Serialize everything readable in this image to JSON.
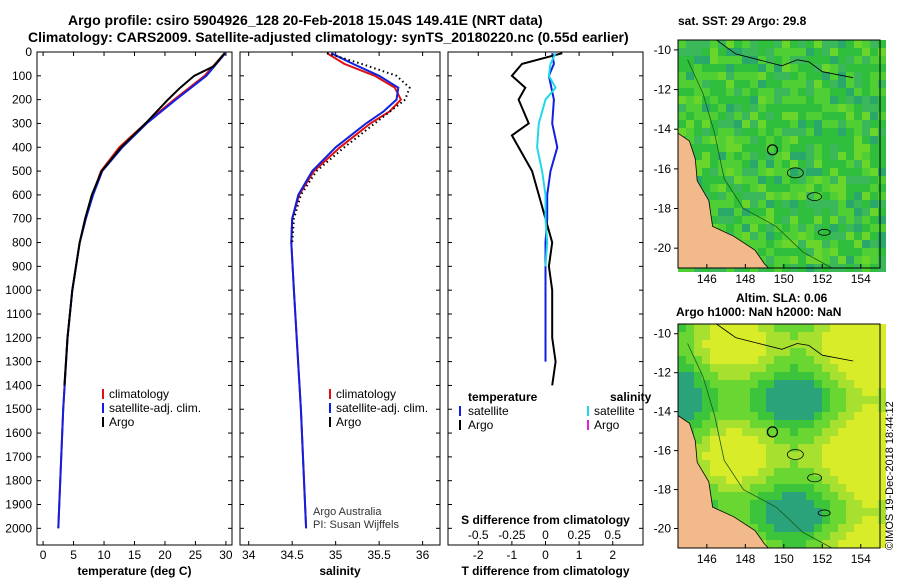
{
  "header": {
    "line1": "Argo profile: csiro 5904926_128 20-Feb-2018 15.04S 149.41E (NRT data)",
    "line2": "Climatology: CARS2009. Satellite-adjusted climatology: synTS_20180220.nc (0.55d earlier)"
  },
  "colors": {
    "clim": "#e01010",
    "sat": "#1020e0",
    "argo": "#000000",
    "sat_s": "#20d8e8",
    "argo_s": "#e020e0",
    "land": "#f2b98a"
  },
  "chart_data": [
    {
      "type": "line",
      "name": "temperature-profile",
      "xlabel": "temperature (deg C)",
      "ylabel": "pressure",
      "xlim": [
        -1,
        31
      ],
      "ylim": [
        0,
        2070
      ],
      "xticks": [
        0,
        5,
        10,
        15,
        20,
        25,
        30
      ],
      "yticks": [
        0,
        100,
        200,
        300,
        400,
        500,
        600,
        700,
        800,
        900,
        1000,
        1100,
        1200,
        1300,
        1400,
        1500,
        1600,
        1700,
        1800,
        1900,
        2000
      ],
      "legend": [
        {
          "label": "climatology",
          "color": "clim"
        },
        {
          "label": "satellite-adj. clim.",
          "color": "sat"
        },
        {
          "label": "Argo",
          "color": "argo"
        }
      ],
      "series": [
        {
          "name": "climatology",
          "color": "clim",
          "p": [
            5,
            100,
            200,
            300,
            400,
            500,
            600,
            700,
            800,
            1000,
            1200,
            1500,
            2000
          ],
          "v": [
            29.8,
            26.5,
            21.5,
            16.8,
            12.5,
            9.5,
            8.1,
            7.0,
            6.0,
            4.8,
            4.0,
            3.3,
            2.5
          ]
        },
        {
          "name": "satellite-adj. clim.",
          "color": "sat",
          "p": [
            5,
            100,
            200,
            300,
            400,
            500,
            600,
            700,
            800,
            1000,
            1200,
            1500,
            2000
          ],
          "v": [
            29.9,
            26.8,
            21.8,
            17.0,
            13.0,
            9.7,
            8.2,
            7.0,
            6.0,
            4.8,
            4.0,
            3.3,
            2.5
          ]
        },
        {
          "name": "Argo",
          "color": "argo",
          "p": [
            5,
            60,
            100,
            150,
            200,
            300,
            400,
            500,
            600,
            700,
            800,
            1000,
            1200,
            1400
          ],
          "v": [
            29.8,
            28.0,
            24.8,
            22.5,
            20.5,
            16.8,
            12.8,
            9.6,
            8.0,
            6.9,
            6.0,
            4.8,
            4.0,
            3.5
          ]
        }
      ]
    },
    {
      "type": "line",
      "name": "salinity-profile",
      "xlabel": "salinity",
      "xlim": [
        33.9,
        36.2
      ],
      "xticks": [
        34,
        34.5,
        35,
        35.5,
        36
      ],
      "legend": [
        {
          "label": "climatology",
          "color": "clim"
        },
        {
          "label": "satellite-adj. clim.",
          "color": "sat"
        },
        {
          "label": "Argo",
          "color": "argo"
        }
      ],
      "credit": [
        "Argo Australia",
        "PI: Susan Wijffels"
      ],
      "series": [
        {
          "name": "climatology",
          "color": "clim",
          "p": [
            5,
            50,
            100,
            150,
            200,
            250,
            300,
            400,
            500,
            600,
            700,
            800,
            1000,
            1500,
            2000
          ],
          "v": [
            34.9,
            35.1,
            35.45,
            35.68,
            35.75,
            35.62,
            35.4,
            35.05,
            34.75,
            34.58,
            34.5,
            34.49,
            34.52,
            34.6,
            34.66
          ]
        },
        {
          "name": "satellite-adj. clim.",
          "color": "sat",
          "p": [
            5,
            50,
            100,
            150,
            200,
            250,
            300,
            400,
            500,
            600,
            700,
            800,
            1000,
            1500,
            2000
          ],
          "v": [
            34.95,
            35.2,
            35.5,
            35.72,
            35.7,
            35.55,
            35.35,
            35.0,
            34.73,
            34.57,
            34.5,
            34.49,
            34.52,
            34.6,
            34.66
          ]
        },
        {
          "name": "Argo",
          "color": "argo",
          "dotted": true,
          "p": [
            5,
            50,
            100,
            150,
            200,
            300,
            400,
            500,
            600,
            700,
            800
          ],
          "v": [
            34.9,
            35.3,
            35.7,
            35.85,
            35.8,
            35.45,
            35.1,
            34.78,
            34.6,
            34.52,
            34.5
          ]
        }
      ]
    },
    {
      "type": "line",
      "name": "difference-profile",
      "xlabel": "T difference from climatology",
      "xlim": [
        -2.9,
        2.9
      ],
      "xticks": [
        -2,
        -1,
        0,
        1,
        2
      ],
      "s_label": "S difference from climatology",
      "s_ticks": [
        {
          "v": -2,
          "t": "-0.5"
        },
        {
          "v": -1,
          "t": "-0.25"
        },
        {
          "v": 0,
          "t": "0"
        },
        {
          "v": 1,
          "t": "0.25"
        },
        {
          "v": 2,
          "t": "0.5"
        }
      ],
      "legend_t": {
        "title": "temperature",
        "items": [
          {
            "label": "satellite",
            "color": "sat"
          },
          {
            "label": "Argo",
            "color": "argo"
          }
        ]
      },
      "legend_s": {
        "title": "salinity",
        "items": [
          {
            "label": "satellite",
            "color": "sat_s"
          },
          {
            "label": "Argo",
            "color": "argo_s"
          }
        ]
      },
      "series": [
        {
          "name": "T satellite",
          "color": "sat",
          "p": [
            5,
            50,
            100,
            200,
            300,
            400,
            500,
            600,
            700,
            800,
            1000,
            1300
          ],
          "v": [
            0.2,
            0.25,
            0.1,
            0.25,
            0.2,
            0.35,
            0.15,
            0.05,
            0.05,
            0.0,
            0.0,
            0.0
          ]
        },
        {
          "name": "T Argo",
          "color": "argo",
          "p": [
            5,
            50,
            100,
            150,
            200,
            300,
            350,
            400,
            500,
            600,
            700,
            800,
            900,
            1000,
            1200,
            1300,
            1400
          ],
          "v": [
            0.5,
            -0.7,
            -1.0,
            -0.6,
            -0.8,
            -0.5,
            -1.0,
            -0.8,
            -0.4,
            -0.2,
            0.0,
            0.2,
            0.1,
            0.2,
            0.2,
            0.3,
            0.2
          ]
        },
        {
          "name": "S satellite",
          "color": "sat_s",
          "p": [
            5,
            50,
            100,
            150,
            200,
            300,
            400,
            500,
            600,
            700,
            800,
            900
          ],
          "v": [
            0.3,
            0.15,
            0.1,
            0.3,
            0.0,
            -0.2,
            -0.25,
            -0.1,
            0.0,
            0.0,
            0.05,
            0.0
          ]
        }
      ]
    }
  ],
  "maps": {
    "top": {
      "title": "sat. SST: 29 Argo: 29.8"
    },
    "bottom": {
      "title1": "Altim. SLA: 0.06",
      "title2": "Argo h1000: NaN h2000: NaN"
    },
    "lon_ticks": [
      "146",
      "148",
      "150",
      "152",
      "154"
    ],
    "lat_ticks": [
      "-10",
      "-12",
      "-14",
      "-16",
      "-18",
      "-20"
    ],
    "credit": "©IMOS 19-Dec-2018 18:44:12"
  }
}
